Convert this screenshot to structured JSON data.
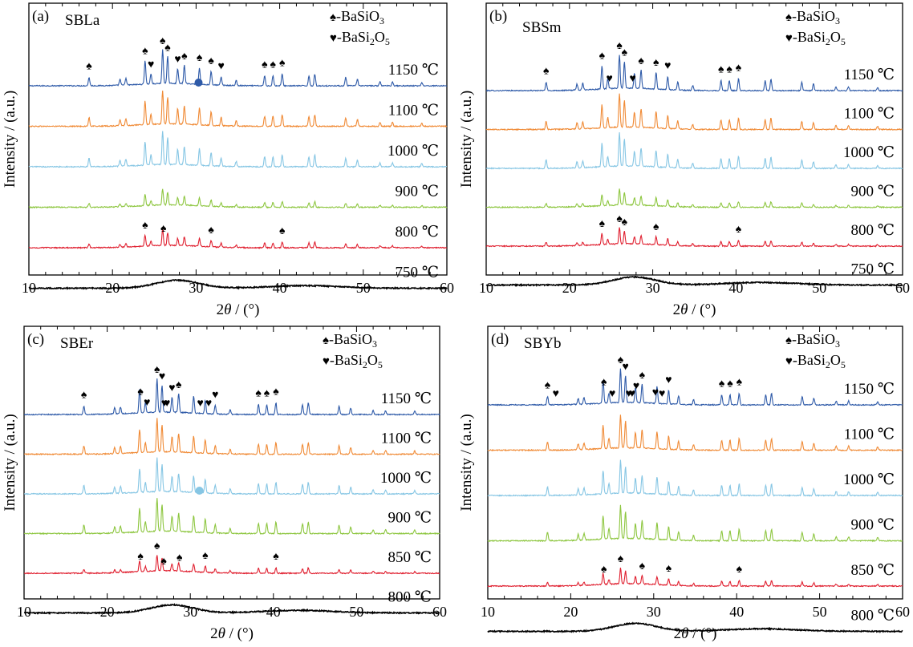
{
  "colors": {
    "1150": "#2e5aa8",
    "1100": "#f08a35",
    "1000": "#86c6e4",
    "900": "#8dc63f",
    "lower": "#e02030",
    "amorphous": "#000000",
    "dot_blue": "#2e5aa8",
    "dot_light": "#86c6e4"
  },
  "legend": {
    "symbol_spade": "♠",
    "symbol_heart": "♥",
    "basio3": "-BaSiO",
    "basio3_sub": "3",
    "basi2o5_a": "-BaSi",
    "basi2o5_sub1": "2",
    "basi2o5_b": "O",
    "basi2o5_sub2": "5"
  },
  "axes": {
    "xlabel_pre": "2",
    "xlabel_theta": "θ",
    "xlabel_post": " / (°)",
    "ylabel": "Intensity / (a.u.)"
  },
  "chart_data": [
    {
      "type": "line",
      "panel": "(a)",
      "sample": "SBLa",
      "xlim": [
        10,
        60
      ],
      "x_ticks": [
        "10",
        "20",
        "30",
        "40",
        "50",
        "60"
      ],
      "xlabel": "2θ / (°)",
      "ylabel": "Intensity / (a.u.)",
      "grid": false,
      "series": [
        {
          "temp": "1150 ℃",
          "color_key": "1150",
          "crystalline": true,
          "strong": true
        },
        {
          "temp": "1100 ℃",
          "color_key": "1100",
          "crystalline": true,
          "strong": true
        },
        {
          "temp": "1000 ℃",
          "color_key": "1000",
          "crystalline": true,
          "strong": true
        },
        {
          "temp": "900 ℃",
          "color_key": "900",
          "crystalline": true,
          "strong": false
        },
        {
          "temp": "800 ℃",
          "color_key": "lower",
          "crystalline": true,
          "strong": false
        },
        {
          "temp": "750 ℃",
          "color_key": "amorphous",
          "crystalline": false,
          "strong": false
        }
      ],
      "annotations": {
        "1150": [
          [
            17.2,
            "s"
          ],
          [
            23.9,
            "s"
          ],
          [
            24.6,
            "h"
          ],
          [
            26.0,
            "s"
          ],
          [
            26.6,
            "s"
          ],
          [
            27.8,
            "h"
          ],
          [
            28.6,
            "s"
          ],
          [
            30.4,
            "s"
          ],
          [
            31.8,
            "s"
          ],
          [
            33.0,
            "h"
          ],
          [
            38.2,
            "s"
          ],
          [
            39.2,
            "s"
          ],
          [
            40.3,
            "s"
          ]
        ],
        "800": [
          [
            23.9,
            "s"
          ],
          [
            26.1,
            "s"
          ],
          [
            31.8,
            "s"
          ],
          [
            40.3,
            "s"
          ]
        ]
      },
      "dot": {
        "x": 30.3,
        "series": "1150",
        "color_key": "dot_blue"
      }
    },
    {
      "type": "line",
      "panel": "(b)",
      "sample": "SBSm",
      "xlim": [
        10,
        60
      ],
      "x_ticks": [
        "10",
        "20",
        "30",
        "40",
        "50",
        "60"
      ],
      "xlabel": "2θ / (°)",
      "ylabel": "Intensity / (a.u.)",
      "grid": false,
      "series": [
        {
          "temp": "1150 ℃",
          "color_key": "1150",
          "crystalline": true,
          "strong": true
        },
        {
          "temp": "1100 ℃",
          "color_key": "1100",
          "crystalline": true,
          "strong": true
        },
        {
          "temp": "1000 ℃",
          "color_key": "1000",
          "crystalline": true,
          "strong": true
        },
        {
          "temp": "900 ℃",
          "color_key": "900",
          "crystalline": true,
          "strong": false
        },
        {
          "temp": "800 ℃",
          "color_key": "lower",
          "crystalline": true,
          "strong": false
        },
        {
          "temp": "750 ℃",
          "color_key": "amorphous",
          "crystalline": false,
          "strong": false
        }
      ],
      "annotations": {
        "1150": [
          [
            17.2,
            "s"
          ],
          [
            23.9,
            "s"
          ],
          [
            24.8,
            "h"
          ],
          [
            26.0,
            "s"
          ],
          [
            26.6,
            "s"
          ],
          [
            27.6,
            "h"
          ],
          [
            28.6,
            "s"
          ],
          [
            30.4,
            "s"
          ],
          [
            31.8,
            "h"
          ],
          [
            38.2,
            "s"
          ],
          [
            39.2,
            "s"
          ],
          [
            40.3,
            "s"
          ]
        ],
        "800": [
          [
            23.9,
            "s"
          ],
          [
            26.0,
            "s"
          ],
          [
            26.6,
            "s"
          ],
          [
            30.4,
            "s"
          ],
          [
            40.3,
            "s"
          ]
        ]
      }
    },
    {
      "type": "line",
      "panel": "(c)",
      "sample": "SBEr",
      "xlim": [
        10,
        60
      ],
      "x_ticks": [
        "10",
        "20",
        "30",
        "40",
        "50",
        "60"
      ],
      "xlabel": "2θ / (°)",
      "ylabel": "Intensity / (a.u.)",
      "grid": false,
      "series": [
        {
          "temp": "1150 ℃",
          "color_key": "1150",
          "crystalline": true,
          "strong": true
        },
        {
          "temp": "1100 ℃",
          "color_key": "1100",
          "crystalline": true,
          "strong": true
        },
        {
          "temp": "1000 ℃",
          "color_key": "1000",
          "crystalline": true,
          "strong": true
        },
        {
          "temp": "900 ℃",
          "color_key": "900",
          "crystalline": true,
          "strong": true
        },
        {
          "temp": "850 ℃",
          "color_key": "lower",
          "crystalline": true,
          "strong": false
        },
        {
          "temp": "800 ℃",
          "color_key": "amorphous",
          "crystalline": false,
          "strong": false
        }
      ],
      "annotations": {
        "1150": [
          [
            17.2,
            "s"
          ],
          [
            24.0,
            "s"
          ],
          [
            24.8,
            "h"
          ],
          [
            26.0,
            "s"
          ],
          [
            26.6,
            "h"
          ],
          [
            27.2,
            "h"
          ],
          [
            26.9,
            "h"
          ],
          [
            27.8,
            "h"
          ],
          [
            28.6,
            "s"
          ],
          [
            31.2,
            "h"
          ],
          [
            32.2,
            "h"
          ],
          [
            33.0,
            "h"
          ],
          [
            38.2,
            "s"
          ],
          [
            39.2,
            "s"
          ],
          [
            40.3,
            "s"
          ]
        ],
        "850": [
          [
            24.0,
            "s"
          ],
          [
            26.0,
            "s"
          ],
          [
            26.8,
            "s"
          ],
          [
            28.7,
            "s"
          ],
          [
            31.8,
            "s"
          ],
          [
            40.3,
            "s"
          ]
        ]
      },
      "dot": {
        "x": 31.1,
        "series": "1000",
        "color_key": "dot_light"
      }
    },
    {
      "type": "line",
      "panel": "(d)",
      "sample": "SBYb",
      "xlim": [
        10,
        60
      ],
      "x_ticks": [
        "10",
        "20",
        "30",
        "40",
        "50",
        "60"
      ],
      "xlabel": "2θ / (°)",
      "ylabel": "Intensity / (a.u.)",
      "grid": false,
      "series": [
        {
          "temp": "1150 ℃",
          "color_key": "1150",
          "crystalline": true,
          "strong": true
        },
        {
          "temp": "1100 ℃",
          "color_key": "1100",
          "crystalline": true,
          "strong": true
        },
        {
          "temp": "1000 ℃",
          "color_key": "1000",
          "crystalline": true,
          "strong": true
        },
        {
          "temp": "900 ℃",
          "color_key": "900",
          "crystalline": true,
          "strong": true
        },
        {
          "temp": "850 ℃",
          "color_key": "lower",
          "crystalline": true,
          "strong": false
        },
        {
          "temp": "800 ℃",
          "color_key": "amorphous",
          "crystalline": false,
          "strong": false
        }
      ],
      "annotations": {
        "1150": [
          [
            17.2,
            "s"
          ],
          [
            18.2,
            "h"
          ],
          [
            24.0,
            "s"
          ],
          [
            25.0,
            "h"
          ],
          [
            26.0,
            "s"
          ],
          [
            26.6,
            "h"
          ],
          [
            27.0,
            "h"
          ],
          [
            27.4,
            "h"
          ],
          [
            27.9,
            "h"
          ],
          [
            28.6,
            "s"
          ],
          [
            30.2,
            "h"
          ],
          [
            31.0,
            "h"
          ],
          [
            31.8,
            "h"
          ],
          [
            38.2,
            "s"
          ],
          [
            39.2,
            "s"
          ],
          [
            40.3,
            "s"
          ]
        ],
        "850": [
          [
            24.0,
            "s"
          ],
          [
            26.0,
            "s"
          ],
          [
            28.6,
            "s"
          ],
          [
            31.8,
            "s"
          ],
          [
            40.3,
            "s"
          ]
        ]
      }
    }
  ]
}
